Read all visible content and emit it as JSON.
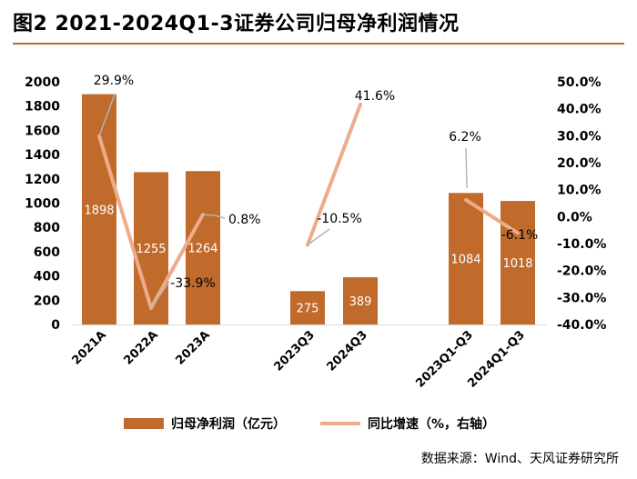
{
  "title": "图2  2021-2024Q1-3证券公司归母净利润情况",
  "source": "数据来源：Wind、天风证券研究所",
  "colors": {
    "bar": "#c06a2b",
    "line": "#eeab8c",
    "leader": "#b4b4b4",
    "underline": "#c06a2b"
  },
  "chart_data": {
    "type": "bar",
    "title": "2021-2024Q1-3证券公司归母净利润情况",
    "categories": [
      "2021A",
      "2022A",
      "2023A",
      "2023Q3",
      "2024Q3",
      "2023Q1-Q3",
      "2024Q1-Q3"
    ],
    "series": [
      {
        "name": "归母净利润（亿元）",
        "type": "bar",
        "axis": "left",
        "values": [
          1898,
          1255,
          1264,
          275,
          389,
          1084,
          1018
        ],
        "labels": [
          "1898",
          "1255",
          "1264",
          "275",
          "389",
          "1084",
          "1018"
        ]
      },
      {
        "name": "同比增速（%，右轴）",
        "type": "line",
        "axis": "right",
        "values": [
          29.9,
          -33.9,
          0.8,
          -10.5,
          41.6,
          6.2,
          -6.1
        ],
        "labels": [
          "29.9%",
          "-33.9%",
          "0.8%",
          "-10.5%",
          "41.6%",
          "6.2%",
          "-6.1%"
        ]
      }
    ],
    "line_segments": [
      [
        0,
        1,
        2
      ],
      [
        3,
        4
      ],
      [
        5,
        6
      ]
    ],
    "y_left": {
      "min": 0,
      "max": 2000,
      "step": 200,
      "ticks": [
        "0",
        "200",
        "400",
        "600",
        "800",
        "1000",
        "1200",
        "1400",
        "1600",
        "1800",
        "2000"
      ]
    },
    "y_right": {
      "min": -40,
      "max": 50,
      "step": 10,
      "ticks": [
        "-40.0%",
        "-30.0%",
        "-20.0%",
        "-10.0%",
        "0.0%",
        "10.0%",
        "20.0%",
        "30.0%",
        "40.0%",
        "50.0%"
      ]
    },
    "legend": [
      "归母净利润（亿元）",
      "同比增速（%，右轴）"
    ],
    "grid": false,
    "legend_position": "bottom"
  }
}
